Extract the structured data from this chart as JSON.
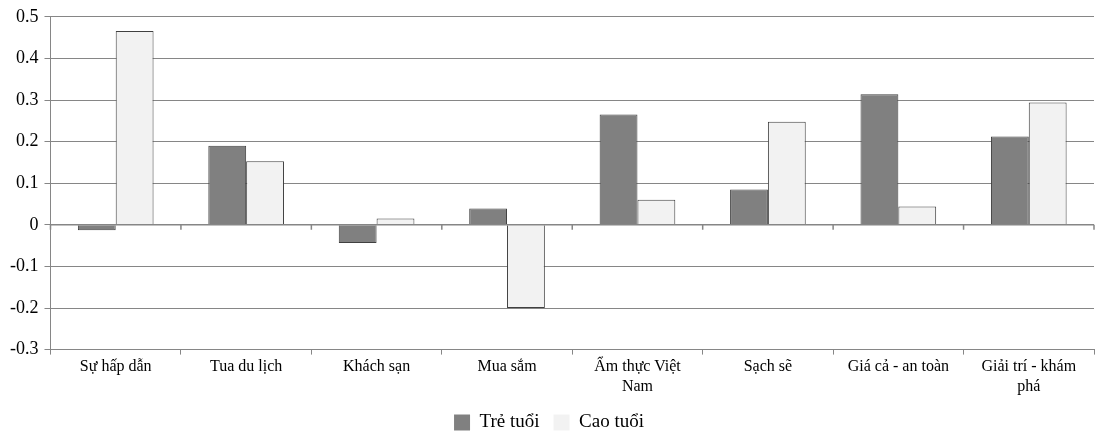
{
  "chart_data": {
    "type": "bar",
    "categories": [
      "Sự hấp dẫn",
      "Tua du lịch",
      "Khách sạn",
      "Mua sắm",
      "Ẩm thực Việt Nam",
      "Sạch sẽ",
      "Giá cả - an toàn",
      "Giải trí - khám phá"
    ],
    "series": [
      {
        "name": "Trẻ tuổi",
        "color": "#808080",
        "values": [
          -0.013,
          0.19,
          -0.044,
          0.039,
          0.265,
          0.085,
          0.314,
          0.212
        ]
      },
      {
        "name": "Cao tuổi",
        "color": "#f2f2f2",
        "values": [
          0.466,
          0.153,
          0.015,
          -0.2,
          0.06,
          0.248,
          0.044,
          0.294
        ]
      }
    ],
    "ylim": [
      -0.3,
      0.5
    ],
    "yticks": [
      -0.3,
      -0.2,
      -0.1,
      0,
      0.1,
      0.2,
      0.3,
      0.4,
      0.5
    ],
    "grid": "y",
    "legend": "bottom"
  }
}
